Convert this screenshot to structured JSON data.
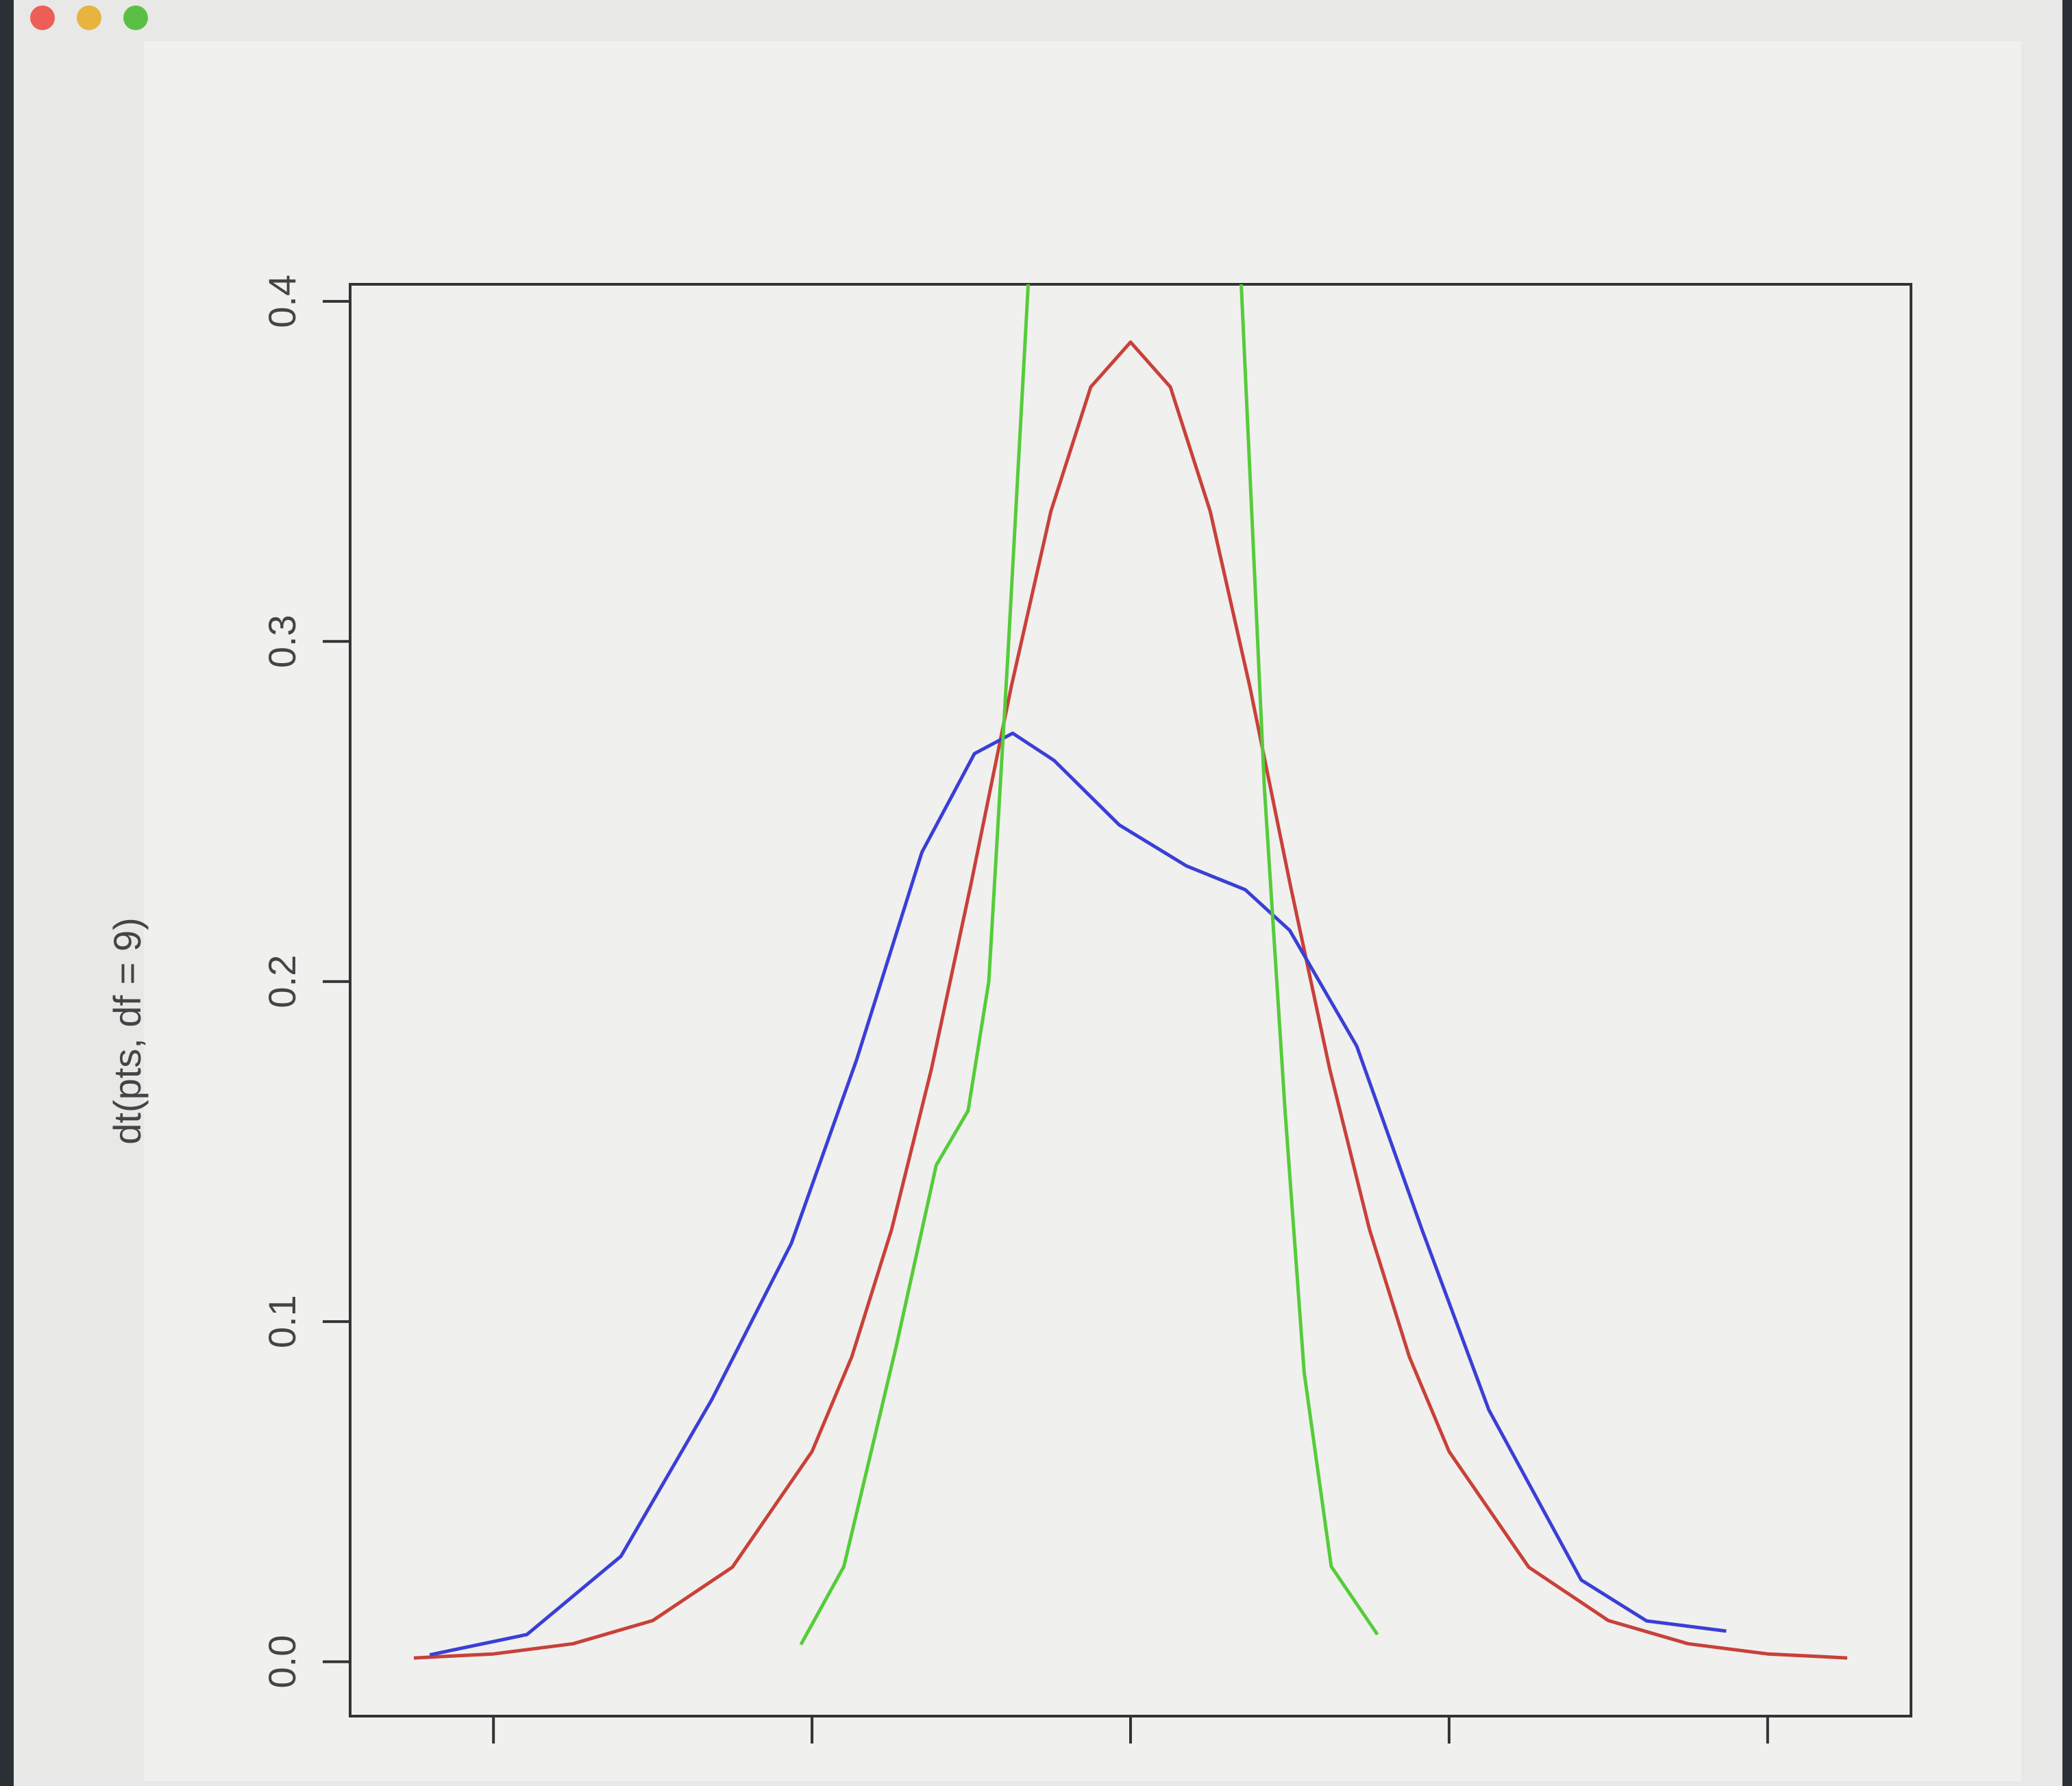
{
  "chart_data": {
    "type": "line",
    "y_label": "dt(pts, df = 9)",
    "xlim": [
      -4.9,
      4.9
    ],
    "xticks": [
      -4,
      -2,
      0,
      2,
      4
    ],
    "ylim": [
      -0.016,
      0.405
    ],
    "yticks": [
      {
        "value": 0,
        "label": "0.0"
      },
      0.1,
      0.2,
      0.3,
      0.4
    ],
    "series": [
      {
        "color": "#c8413a",
        "x": [
          -4.5,
          -4,
          -3.5,
          -3,
          -2.5,
          -2,
          -1.75,
          -1.5,
          -1.25,
          -1,
          -0.75,
          -0.5,
          -0.25,
          0,
          0.25,
          0.5,
          0.75,
          1,
          1.25,
          1.5,
          1.75,
          2,
          2.5,
          3,
          3.5,
          4,
          4.5
        ],
        "values": [
          0.0011,
          0.0023,
          0.0053,
          0.0121,
          0.0278,
          0.0618,
          0.0897,
          0.1271,
          0.1743,
          0.2291,
          0.2865,
          0.3383,
          0.3748,
          0.388,
          0.3748,
          0.3383,
          0.2865,
          0.2291,
          0.1743,
          0.1271,
          0.0897,
          0.0618,
          0.0278,
          0.0121,
          0.0053,
          0.0023,
          0.0011
        ]
      },
      {
        "color": "#3a3fd6",
        "x": [
          -4.4,
          -3.79,
          -3.2,
          -2.63,
          -2.13,
          -1.72,
          -1.31,
          -0.98,
          -0.74,
          -0.48,
          -0.07,
          0.35,
          0.72,
          1.0,
          1.42,
          1.83,
          2.25,
          2.83,
          3.24,
          3.74
        ],
        "values": [
          0.002,
          0.008,
          0.031,
          0.077,
          0.123,
          0.177,
          0.238,
          0.267,
          0.273,
          0.265,
          0.246,
          0.234,
          0.227,
          0.215,
          0.181,
          0.127,
          0.074,
          0.024,
          0.012,
          0.009
        ]
      },
      {
        "color": "#55cc3a",
        "x": [
          -2.07,
          -1.8,
          -1.47,
          -1.22,
          -1.02,
          -0.89,
          -0.77,
          -0.64,
          -0.6,
          0.68,
          0.69,
          0.84,
          0.97,
          1.09,
          1.26,
          1.55
        ],
        "values": [
          0.005,
          0.028,
          0.093,
          0.146,
          0.162,
          0.2,
          0.296,
          0.407,
          0.42,
          0.42,
          0.41,
          0.257,
          0.162,
          0.085,
          0.028,
          0.008
        ]
      }
    ]
  }
}
